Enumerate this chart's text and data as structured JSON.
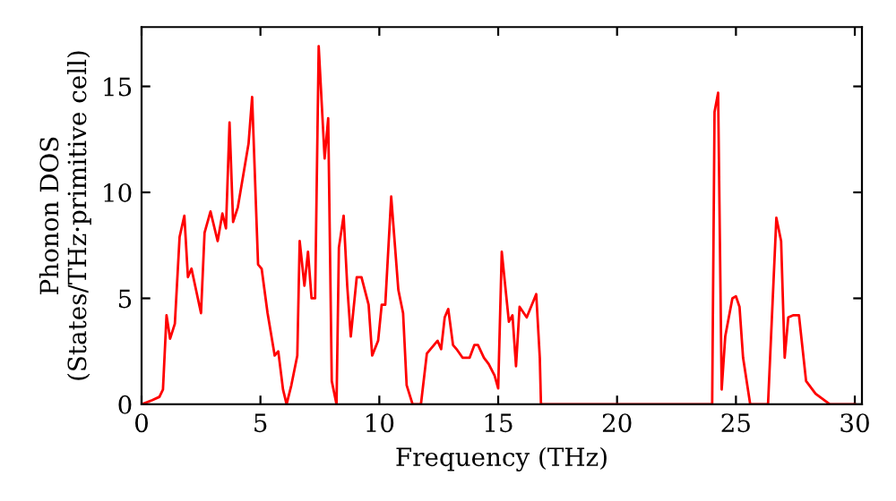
{
  "chart_data": {
    "type": "line",
    "xlabel": "Frequency (THz)",
    "ylabel": "Phonon DOS\n(States/THz·primitive cell)",
    "xlim": [
      0,
      30.3
    ],
    "ylim": [
      0,
      17.8
    ],
    "xticks": [
      0,
      5,
      10,
      15,
      20,
      25,
      30
    ],
    "yticks": [
      0,
      5,
      10,
      15
    ],
    "grid": false,
    "legend": false,
    "marker": "none",
    "line_style": "solid",
    "series": [
      {
        "color": "#ff0000",
        "x": [
          0,
          0.45,
          0.75,
          0.9,
          1.05,
          1.2,
          1.4,
          1.6,
          1.8,
          1.95,
          2.1,
          2.5,
          2.65,
          2.9,
          3.2,
          3.4,
          3.55,
          3.7,
          3.85,
          4.05,
          4.5,
          4.65,
          4.9,
          5.05,
          5.3,
          5.6,
          5.75,
          5.95,
          6.1,
          6.3,
          6.55,
          6.65,
          6.85,
          7.0,
          7.15,
          7.3,
          7.45,
          7.7,
          7.85,
          8.0,
          8.2,
          8.3,
          8.5,
          8.65,
          8.8,
          9.05,
          9.25,
          9.55,
          9.7,
          9.95,
          10.1,
          10.25,
          10.5,
          10.8,
          11.0,
          11.15,
          11.4,
          11.75,
          12.0,
          12.3,
          12.45,
          12.6,
          12.75,
          12.9,
          13.1,
          13.25,
          13.5,
          13.8,
          14.0,
          14.15,
          14.4,
          14.6,
          14.85,
          15.0,
          15.15,
          15.45,
          15.6,
          15.75,
          15.9,
          16.2,
          16.6,
          16.75,
          16.8,
          24.0,
          24.1,
          24.25,
          24.4,
          24.55,
          24.85,
          25.0,
          25.15,
          25.3,
          25.6,
          26.35,
          26.7,
          26.9,
          27.05,
          27.2,
          27.4,
          27.65,
          27.95,
          28.35,
          28.95,
          30
        ],
        "values": [
          0,
          0.2,
          0.35,
          0.7,
          4.2,
          3.1,
          3.8,
          7.9,
          8.9,
          6.0,
          6.4,
          4.3,
          8.1,
          9.1,
          7.7,
          9.0,
          8.3,
          13.3,
          8.6,
          9.3,
          12.3,
          14.5,
          6.6,
          6.4,
          4.3,
          2.3,
          2.5,
          0.7,
          0,
          0.9,
          2.3,
          7.7,
          5.6,
          7.2,
          5.0,
          5.0,
          16.9,
          11.6,
          13.5,
          1.1,
          0,
          7.4,
          8.9,
          5.6,
          3.2,
          6.0,
          6.0,
          4.7,
          2.3,
          3.0,
          4.7,
          4.7,
          9.8,
          5.4,
          4.3,
          0.9,
          0,
          0,
          2.4,
          2.8,
          3.0,
          2.6,
          4.1,
          4.5,
          2.8,
          2.6,
          2.2,
          2.2,
          2.8,
          2.8,
          2.2,
          1.9,
          1.35,
          0.75,
          7.2,
          3.9,
          4.2,
          1.8,
          4.6,
          4.1,
          5.2,
          2.2,
          0,
          0,
          13.8,
          14.7,
          0.7,
          3.2,
          5.0,
          5.1,
          4.6,
          2.2,
          0,
          0,
          8.8,
          7.7,
          2.2,
          4.1,
          4.2,
          4.2,
          1.1,
          0.5,
          0,
          0
        ]
      }
    ]
  }
}
